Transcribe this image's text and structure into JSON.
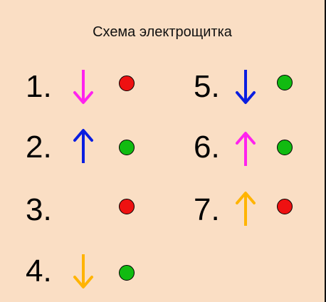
{
  "title": "Схема электрощитка",
  "colors": {
    "background": "#fadec4",
    "magenta": "#ff22ee",
    "blue": "#0a1ee0",
    "orange": "#ffb400",
    "red": "#ee1111",
    "green": "#11bb11"
  },
  "items": [
    {
      "label": "1.",
      "arrow": "down",
      "arrow_color": "#ff22ee",
      "status": "red"
    },
    {
      "label": "2.",
      "arrow": "up",
      "arrow_color": "#0a1ee0",
      "status": "green"
    },
    {
      "label": "3.",
      "arrow": "none",
      "arrow_color": "",
      "status": "red"
    },
    {
      "label": "4.",
      "arrow": "down",
      "arrow_color": "#ffb400",
      "status": "green"
    },
    {
      "label": "5.",
      "arrow": "down",
      "arrow_color": "#0a1ee0",
      "status": "green"
    },
    {
      "label": "6.",
      "arrow": "up",
      "arrow_color": "#ff22ee",
      "status": "green"
    },
    {
      "label": "7.",
      "arrow": "up",
      "arrow_color": "#ffb400",
      "status": "red"
    }
  ]
}
